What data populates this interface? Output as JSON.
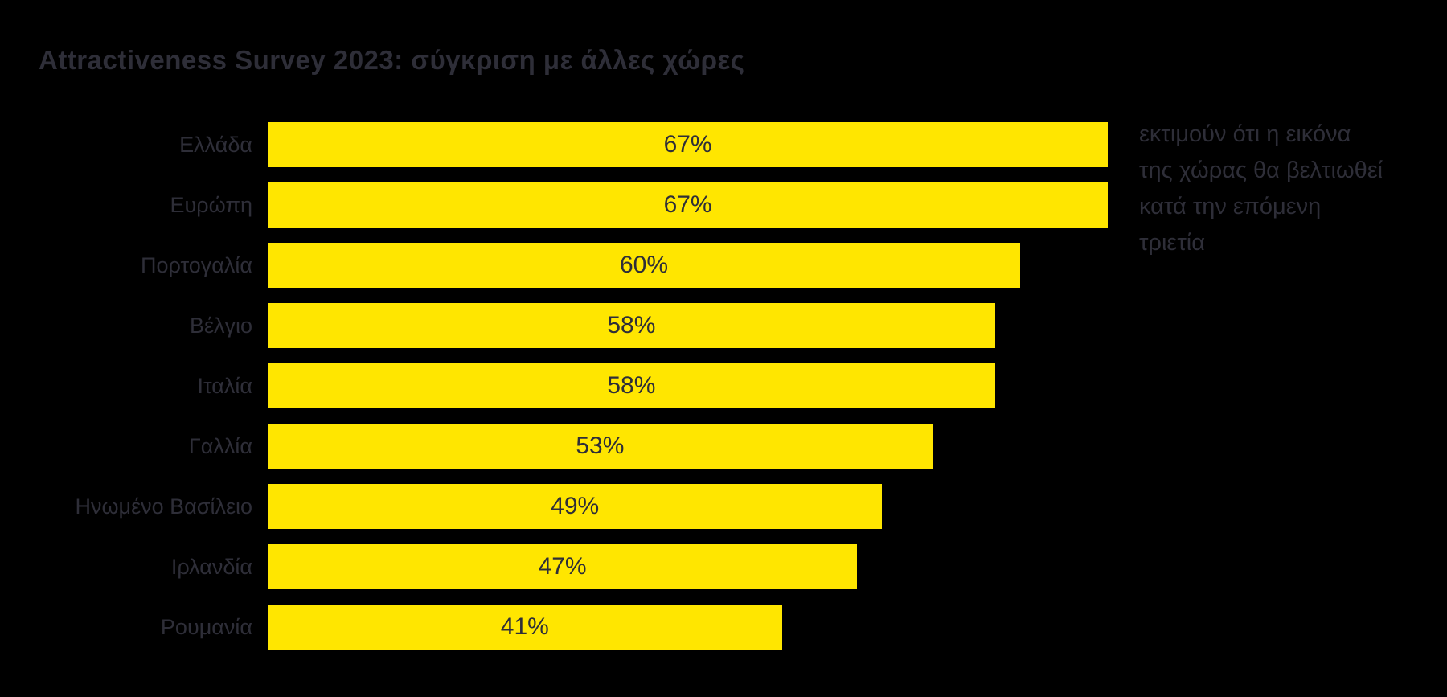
{
  "title": "Attractiveness Survey 2023: σύγκριση με άλλες χώρες",
  "annotation": {
    "text": "εκτιμούν ότι η εικόνα της χώρας θα βελτιωθεί κατά την επόμενη τριετία",
    "lines": [
      "εκτιμούν ότι η εικόνα",
      "της χώρας θα βελτιωθεί",
      "κατά την επόμενη",
      "τριετία"
    ]
  },
  "colors": {
    "background": "#000000",
    "bar": "#FFE600",
    "text": "#2E2E38"
  },
  "chart_data": {
    "type": "bar",
    "orientation": "horizontal",
    "title": "Attractiveness Survey 2023: σύγκριση με άλλες χώρες",
    "categories": [
      "Ελλάδα",
      "Ευρώπη",
      "Πορτογαλία",
      "Βέλγιο",
      "Ιταλία",
      "Γαλλία",
      "Ηνωμένο Βασίλειο",
      "Ιρλανδία",
      "Ρουμανία"
    ],
    "values": [
      67,
      67,
      60,
      58,
      58,
      53,
      49,
      47,
      41
    ],
    "value_labels": [
      "67%",
      "67%",
      "60%",
      "58%",
      "58%",
      "53%",
      "49%",
      "47%",
      "41%"
    ],
    "unit": "%",
    "xlim": [
      0,
      100
    ],
    "grid": false,
    "legend": false,
    "value_label_position": "center-inside",
    "annotation": "εκτιμούν ότι η εικόνα της χώρας θα βελτιωθεί κατά την επόμενη τριετία"
  }
}
